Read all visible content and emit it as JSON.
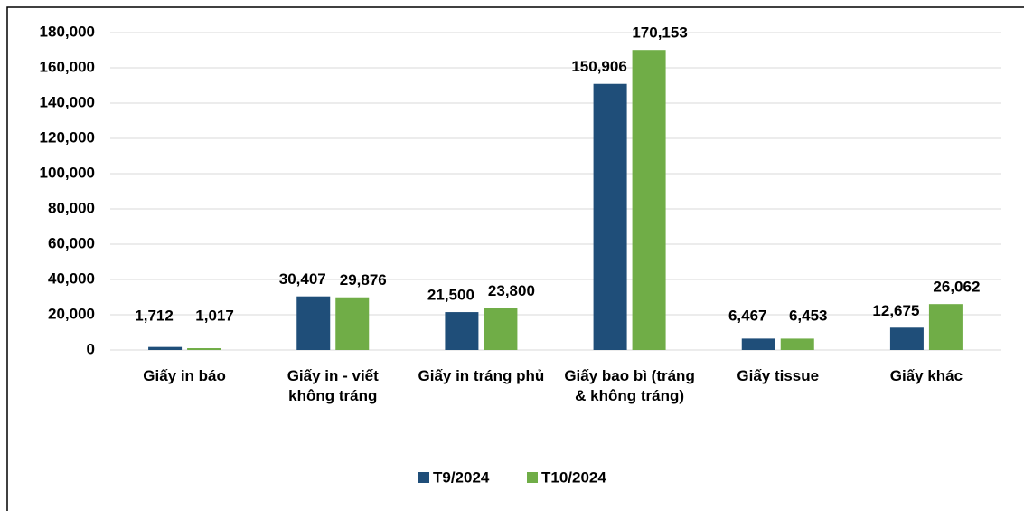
{
  "chart_data": {
    "type": "bar",
    "categories": [
      "Giấy in báo",
      "Giấy in - viết không tráng",
      "Giấy in tráng phủ",
      "Giấy bao bì (tráng & không tráng)",
      "Giấy tissue",
      "Giấy khác"
    ],
    "series": [
      {
        "name": "T9/2024",
        "color": "#1f4e79",
        "values": [
          1712,
          30407,
          21500,
          150906,
          6467,
          12675
        ],
        "value_labels": [
          "1,712",
          "30,407",
          "21,500",
          "150,906",
          "6,467",
          "12,675"
        ]
      },
      {
        "name": "T10/2024",
        "color": "#70ad47",
        "values": [
          1017,
          29876,
          23800,
          170153,
          6453,
          26062
        ],
        "value_labels": [
          "1,017",
          "29,876",
          "23,800",
          "170,153",
          "6,453",
          "26,062"
        ]
      }
    ],
    "ylim": [
      0,
      180000
    ],
    "yticks": [
      {
        "value": 0,
        "label": "0"
      },
      {
        "value": 20000,
        "label": "20,000"
      },
      {
        "value": 40000,
        "label": "40,000"
      },
      {
        "value": 60000,
        "label": "60,000"
      },
      {
        "value": 80000,
        "label": "80,000"
      },
      {
        "value": 100000,
        "label": "100,000"
      },
      {
        "value": 120000,
        "label": "120,000"
      },
      {
        "value": 140000,
        "label": "140,000"
      },
      {
        "value": 160000,
        "label": "160,000"
      },
      {
        "value": 180000,
        "label": "180,000"
      }
    ],
    "grid": true,
    "legend": "bottom"
  }
}
